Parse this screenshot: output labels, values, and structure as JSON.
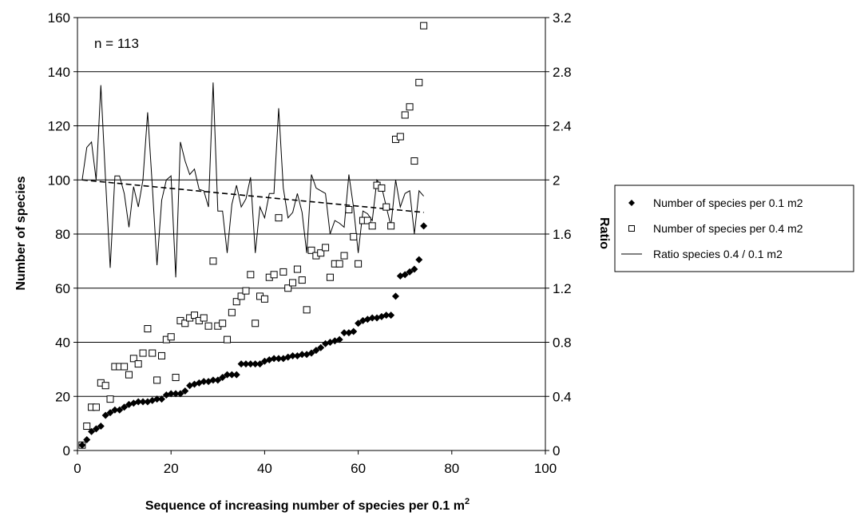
{
  "chart_data": {
    "type": "scatter",
    "annotation": "n = 113",
    "xlabel": "Sequence of increasing number of species per 0.1 m",
    "xlabel_superscript": "2",
    "ylabel": "Number of species",
    "y2label": "Ratio",
    "xlim": [
      0,
      100
    ],
    "ylim": [
      0,
      160
    ],
    "y2lim": [
      0,
      3.2
    ],
    "x_ticks": [
      "0",
      "20",
      "40",
      "60",
      "80",
      "100"
    ],
    "y_ticks": [
      "0",
      "20",
      "40",
      "60",
      "80",
      "100",
      "120",
      "140",
      "160"
    ],
    "y2_ticks": [
      "0",
      "0.4",
      "0.8",
      "1.2",
      "1.6",
      "2",
      "2.4",
      "2.8",
      "3.2"
    ],
    "grid": "horizontal",
    "legend_position": "right",
    "series": [
      {
        "name": "Number of species per 0.1 m2",
        "marker": "diamond",
        "axis": "left",
        "color": "#000000",
        "x": [
          1,
          2,
          3,
          4,
          5,
          6,
          7,
          8,
          9,
          10,
          11,
          12,
          13,
          14,
          15,
          16,
          17,
          18,
          19,
          20,
          21,
          22,
          23,
          24,
          25,
          26,
          27,
          28,
          29,
          30,
          31,
          32,
          33,
          34,
          35,
          36,
          37,
          38,
          39,
          40,
          41,
          42,
          43,
          44,
          45,
          46,
          47,
          48,
          49,
          50,
          51,
          52,
          53,
          54,
          55,
          56,
          57,
          58,
          59,
          60,
          61,
          62,
          63,
          64,
          65,
          66,
          67,
          68,
          69,
          70,
          71,
          72,
          73,
          74
        ],
        "y": [
          2,
          4,
          7,
          8,
          9,
          13,
          14,
          15,
          15,
          16,
          17,
          17.5,
          18,
          18,
          18,
          18.5,
          19,
          19,
          20.5,
          21,
          21,
          21,
          22,
          24,
          24.5,
          25,
          25.5,
          25.5,
          26,
          26,
          27,
          28,
          28,
          28,
          32,
          32,
          32,
          32,
          32,
          33,
          33.5,
          34,
          34,
          34,
          34.5,
          35,
          35,
          35.5,
          35.5,
          36,
          37,
          38,
          39.5,
          40,
          40.5,
          41,
          43.5,
          43.5,
          44,
          47,
          48,
          48.5,
          49,
          49,
          49.5,
          50,
          50,
          57,
          64.5,
          65,
          66,
          67,
          70.5,
          83
        ]
      },
      {
        "name": "Number of species per 0.4 m2",
        "marker": "square-open",
        "axis": "left",
        "color": "#000000",
        "x": [
          1,
          2,
          3,
          4,
          5,
          6,
          7,
          8,
          9,
          10,
          11,
          12,
          13,
          14,
          15,
          16,
          17,
          18,
          19,
          20,
          21,
          22,
          23,
          24,
          25,
          26,
          27,
          28,
          29,
          30,
          31,
          32,
          33,
          34,
          35,
          36,
          37,
          38,
          39,
          40,
          41,
          42,
          43,
          44,
          45,
          46,
          47,
          48,
          49,
          50,
          51,
          52,
          53,
          54,
          55,
          56,
          57,
          58,
          59,
          60,
          61,
          62,
          63,
          64,
          65,
          66,
          67,
          68,
          69,
          70,
          71,
          72,
          73,
          74
        ],
        "y": [
          2,
          9,
          16,
          16,
          25,
          24,
          19,
          31,
          31,
          31,
          28,
          34,
          32,
          36,
          45,
          36,
          26,
          35,
          41,
          42,
          27,
          48,
          47,
          49,
          50,
          48,
          49,
          46,
          70,
          46,
          47,
          41,
          51,
          55,
          57,
          59,
          65,
          47,
          57,
          56,
          64,
          65,
          86,
          66,
          60,
          62,
          67,
          63,
          52,
          74,
          72,
          73,
          75,
          64,
          69,
          69,
          72,
          89,
          79,
          69,
          85,
          85,
          83,
          98,
          97,
          90,
          83,
          115,
          116,
          124,
          127,
          107,
          136,
          157
        ]
      },
      {
        "name": "Ratio species 0.4 / 0.1 m2",
        "marker": "line",
        "axis": "right",
        "color": "#000000",
        "x": [
          1,
          2,
          3,
          4,
          5,
          6,
          7,
          8,
          9,
          10,
          11,
          12,
          13,
          14,
          15,
          16,
          17,
          18,
          19,
          20,
          21,
          22,
          23,
          24,
          25,
          26,
          27,
          28,
          29,
          30,
          31,
          32,
          33,
          34,
          35,
          36,
          37,
          38,
          39,
          40,
          41,
          42,
          43,
          44,
          45,
          46,
          47,
          48,
          49,
          50,
          51,
          52,
          53,
          54,
          55,
          56,
          57,
          58,
          59,
          60,
          61,
          62,
          63,
          64,
          65,
          66,
          67,
          68,
          69,
          70,
          71,
          72,
          73,
          74
        ],
        "y": [
          2.0,
          2.24,
          2.28,
          2.0,
          2.7,
          2.0,
          1.35,
          2.03,
          2.03,
          1.9,
          1.65,
          1.95,
          1.8,
          2.0,
          2.5,
          1.95,
          1.37,
          1.85,
          2.0,
          2.03,
          1.28,
          2.28,
          2.14,
          2.04,
          2.08,
          1.93,
          1.92,
          1.8,
          2.72,
          1.77,
          1.77,
          1.46,
          1.82,
          1.96,
          1.8,
          1.86,
          2.02,
          1.46,
          1.8,
          1.72,
          1.9,
          1.9,
          2.53,
          1.94,
          1.72,
          1.76,
          1.9,
          1.76,
          1.46,
          2.04,
          1.94,
          1.92,
          1.9,
          1.6,
          1.7,
          1.68,
          1.65,
          2.04,
          1.8,
          1.46,
          1.77,
          1.75,
          1.7,
          2.0,
          1.95,
          1.8,
          1.66,
          2.0,
          1.8,
          1.9,
          1.92,
          1.6,
          1.92,
          1.88
        ]
      }
    ],
    "trendline": {
      "axis": "right",
      "x": [
        1,
        74
      ],
      "y": [
        2.0,
        1.76
      ],
      "style": "dashed"
    }
  }
}
